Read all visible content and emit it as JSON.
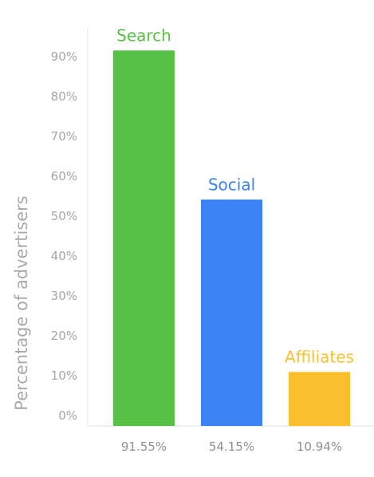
{
  "chart_data": {
    "type": "bar",
    "title": "",
    "xlabel": "",
    "ylabel": "Percentage of advertisers",
    "ylim": [
      0,
      90
    ],
    "yticks": [
      "0%",
      "10%",
      "20%",
      "30%",
      "40%",
      "50%",
      "60%",
      "70%",
      "80%",
      "90%"
    ],
    "categories": [
      "Search",
      "Social",
      "Affiliates"
    ],
    "values": [
      91.55,
      54.15,
      10.94
    ],
    "value_labels": [
      "91.55%",
      "54.15%",
      "10.94%"
    ],
    "colors": [
      "#56c145",
      "#3b82f6",
      "#fbbf2e"
    ],
    "grid": false,
    "legend": "none"
  }
}
